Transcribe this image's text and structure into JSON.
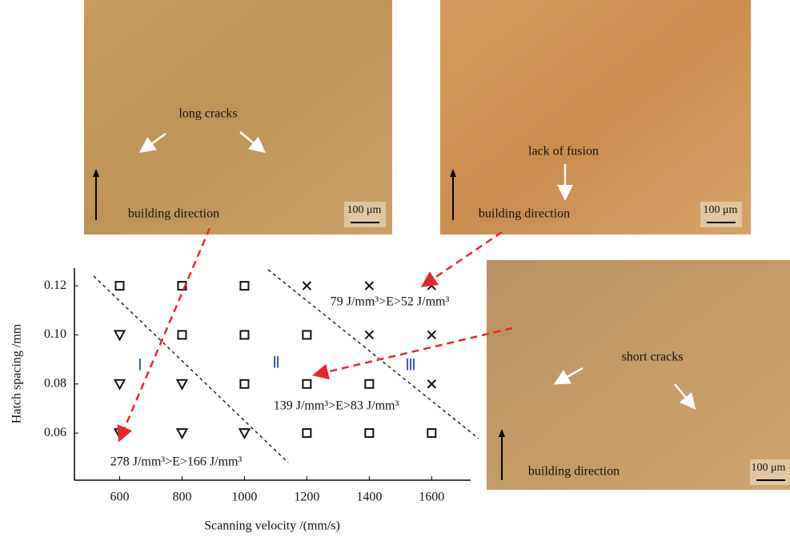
{
  "chart_data": {
    "type": "scatter",
    "x_label": "Scanning velocity /(mm/s)",
    "y_label": "Hatch spacing /mm",
    "xlim": [
      455,
      1725
    ],
    "ylim": [
      0.0408,
      0.1272
    ],
    "xticks": [
      600,
      800,
      1000,
      1200,
      1400,
      1600
    ],
    "yticks": [
      0.06,
      0.08,
      {
        "value": 0.1,
        "label": "0.10"
      },
      0.12
    ],
    "series": [
      {
        "marker": "square",
        "color": "#111111",
        "x": [
          600,
          800,
          1000,
          800,
          1000,
          1200,
          1000,
          1200,
          1400,
          1200,
          1400,
          1600
        ],
        "values": [
          0.12,
          0.12,
          0.12,
          0.1,
          0.1,
          0.1,
          0.08,
          0.08,
          0.08,
          0.06,
          0.06,
          0.06
        ]
      },
      {
        "marker": "triangle-down",
        "color": "#111111",
        "x": [
          600,
          600,
          800,
          600,
          800,
          1000
        ],
        "values": [
          0.1,
          0.08,
          0.08,
          0.06,
          0.06,
          0.06
        ]
      },
      {
        "marker": "x",
        "color": "#111111",
        "x": [
          1200,
          1400,
          1600,
          1400,
          1600,
          1600
        ],
        "values": [
          0.12,
          0.12,
          0.12,
          0.1,
          0.1,
          0.08
        ]
      }
    ],
    "annotations": [
      "Ⅰ",
      "Ⅱ",
      "Ⅲ",
      "278 J/mm³>E>166 J/mm³",
      "139 J/mm³>E>83 J/mm³",
      "79 J/mm³>E>52 J/mm³"
    ]
  },
  "images": [
    {
      "labels": [
        "long cracks",
        "building direction",
        "100 μm"
      ]
    },
    {
      "labels": [
        "lack of fusion",
        "building direction",
        "100 μm"
      ]
    },
    {
      "labels": [
        "short cracks",
        "building direction",
        "100 μm"
      ]
    }
  ]
}
